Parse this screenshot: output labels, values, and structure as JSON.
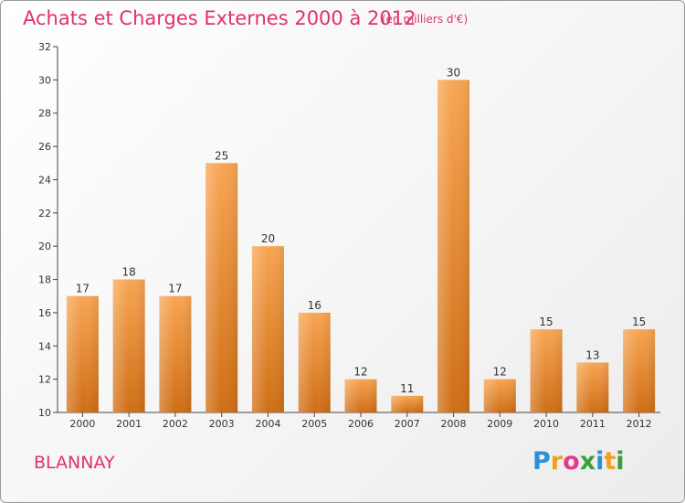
{
  "title": "Achats et Charges Externes 2000 à 2012",
  "subtitle": "(en milliers d'€)",
  "town": "BLANNAY",
  "logo": {
    "letters": [
      "P",
      "r",
      "o",
      "x",
      "i",
      "t",
      "i"
    ],
    "colors": [
      "#2a8fd6",
      "#f0a020",
      "#e23a8a",
      "#3a9f3a",
      "#2a8fd6",
      "#f0a020",
      "#3a9f3a"
    ]
  },
  "chart_data": {
    "type": "bar",
    "categories": [
      "2000",
      "2001",
      "2002",
      "2003",
      "2004",
      "2005",
      "2006",
      "2007",
      "2008",
      "2009",
      "2010",
      "2011",
      "2012"
    ],
    "values": [
      17,
      18,
      17,
      25,
      20,
      16,
      12,
      11,
      30,
      12,
      15,
      13,
      15
    ],
    "ylim": [
      10,
      32
    ],
    "yticks": [
      10,
      12,
      14,
      16,
      18,
      20,
      22,
      24,
      26,
      28,
      30,
      32
    ],
    "grid": false,
    "bar_color_top": "#f8a552",
    "bar_color_bottom": "#cf6e15",
    "data_labels": true
  }
}
